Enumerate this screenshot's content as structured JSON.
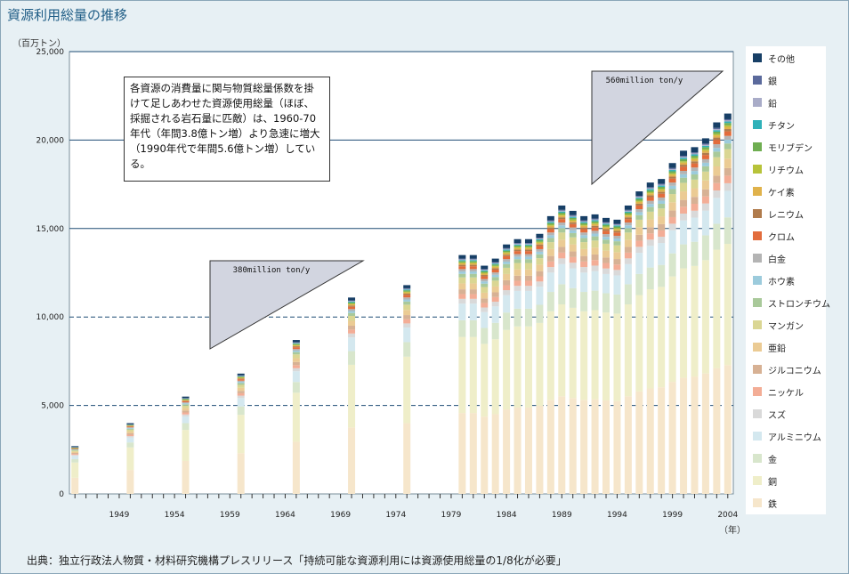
{
  "title": "資源利用総量の推移",
  "y_unit": "（百万トン）",
  "x_unit": "（年）",
  "source": "出典：独立行政法人物質・材料研究機構プレスリリース「持続可能な資源利用には資源使用総量の1/8化が必要」",
  "annotation": "各資源の消費量に関与物質総量係数を掛けて足しあわせた資源使用総量（ほぼ、採掘される岩石量に匹敵）は、1960-70年代（年間3.8億トン増）より急速に増大（1990年代で年間5.6億トン増）している。",
  "triangle_labels": [
    "380million ton/y",
    "560million ton/y"
  ],
  "legend": [
    {
      "label": "その他",
      "color": "#173f66"
    },
    {
      "label": "銀",
      "color": "#5b6a9c"
    },
    {
      "label": "鉛",
      "color": "#a9acc8"
    },
    {
      "label": "チタン",
      "color": "#2fb1b9"
    },
    {
      "label": "モリブデン",
      "color": "#6fae51"
    },
    {
      "label": "リチウム",
      "color": "#b7c33a"
    },
    {
      "label": "ケイ素",
      "color": "#e0b24b"
    },
    {
      "label": "レニウム",
      "color": "#b07b4c"
    },
    {
      "label": "クロム",
      "color": "#e26c3c"
    },
    {
      "label": "白金",
      "color": "#b4b4b4"
    },
    {
      "label": "ホウ素",
      "color": "#9ccbdc"
    },
    {
      "label": "ストロンチウム",
      "color": "#a9c99a"
    },
    {
      "label": "マンガン",
      "color": "#dad693"
    },
    {
      "label": "亜鉛",
      "color": "#ebcb94"
    },
    {
      "label": "ジルコニウム",
      "color": "#d7b194"
    },
    {
      "label": "ニッケル",
      "color": "#f3ad96"
    },
    {
      "label": "スズ",
      "color": "#d9d9d9"
    },
    {
      "label": "アルミニウム",
      "color": "#d4e8ef"
    },
    {
      "label": "金",
      "color": "#d8e6cc"
    },
    {
      "label": "銅",
      "color": "#efeec9"
    },
    {
      "label": "鉄",
      "color": "#f6e6cb"
    }
  ],
  "chart_data": {
    "type": "bar",
    "stacked": true,
    "ylabel": "（百万トン）",
    "xlabel": "（年）",
    "ylim": [
      0,
      25000
    ],
    "yticks": [
      "0",
      "5,000",
      "10,000",
      "15,000",
      "20,000",
      "25,000"
    ],
    "xticks": [
      "1949",
      "1954",
      "1959",
      "1964",
      "1969",
      "1974",
      "1979",
      "1984",
      "1989",
      "1994",
      "1999",
      "2004"
    ],
    "x": [
      1945,
      1950,
      1955,
      1960,
      1965,
      1970,
      1975,
      1980,
      1981,
      1982,
      1983,
      1984,
      1985,
      1986,
      1987,
      1988,
      1989,
      1990,
      1991,
      1992,
      1993,
      1994,
      1995,
      1996,
      1997,
      1998,
      1999,
      2000,
      2001,
      2002,
      2003,
      2004
    ],
    "totals": [
      2700,
      4000,
      5500,
      6800,
      8700,
      11100,
      11800,
      13500,
      13500,
      12900,
      13300,
      14100,
      14400,
      14400,
      14700,
      15700,
      16300,
      16000,
      15700,
      15800,
      15600,
      15500,
      16300,
      17100,
      17600,
      17800,
      18700,
      19400,
      19600,
      20100,
      21000,
      21500
    ],
    "composition_order_bottom_to_top": [
      "鉄",
      "銅",
      "金",
      "アルミニウム",
      "スズ",
      "ニッケル",
      "ジルコニウム",
      "亜鉛",
      "マンガン",
      "ストロンチウム",
      "ホウ素",
      "白金",
      "クロム",
      "レニウム",
      "ケイ素",
      "リチウム",
      "モリブデン",
      "チタン",
      "鉛",
      "銀",
      "その他"
    ]
  }
}
